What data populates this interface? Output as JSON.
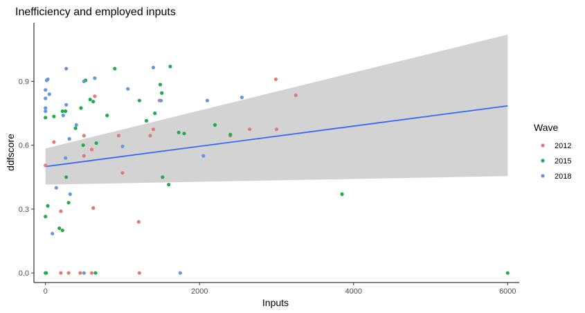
{
  "chart_data": {
    "type": "scatter",
    "title": "Inefficiency and employed inputs",
    "xlabel": "Inputs",
    "ylabel": "ddfscore",
    "xlim": [
      -150,
      6150
    ],
    "ylim": [
      -0.045,
      1.175
    ],
    "xticks": [
      {
        "value": 0,
        "label": "0"
      },
      {
        "value": 2000,
        "label": "2000"
      },
      {
        "value": 4000,
        "label": "4000"
      },
      {
        "value": 6000,
        "label": "6000"
      }
    ],
    "yticks": [
      {
        "value": 0,
        "label": "0.0"
      },
      {
        "value": 0.3,
        "label": "0.3"
      },
      {
        "value": 0.6,
        "label": "0.6"
      },
      {
        "value": 0.9,
        "label": "0.9"
      }
    ],
    "grid": false,
    "legend": {
      "title": "Wave",
      "position": "right"
    },
    "smooth": {
      "method": "linear",
      "color": "#3366FF",
      "band_color": "#D3D3D3",
      "x": [
        0,
        6000
      ],
      "y": [
        0.5,
        0.785
      ],
      "band_lower": [
        0.415,
        0.455
      ],
      "band_upper": [
        0.585,
        1.12
      ]
    },
    "series": [
      {
        "name": "2012",
        "color": "#E07B73",
        "points": [
          [
            200,
            0.0
          ],
          [
            300,
            0.0
          ],
          [
            450,
            0.0
          ],
          [
            600,
            0.0
          ],
          [
            1220,
            0.0
          ],
          [
            0,
            0.505
          ],
          [
            110,
            0.615
          ],
          [
            200,
            0.29
          ],
          [
            500,
            0.645
          ],
          [
            500,
            0.55
          ],
          [
            600,
            0.58
          ],
          [
            620,
            0.305
          ],
          [
            640,
            0.83
          ],
          [
            950,
            0.645
          ],
          [
            1000,
            0.47
          ],
          [
            1210,
            0.24
          ],
          [
            1360,
            0.645
          ],
          [
            1400,
            0.675
          ],
          [
            1480,
            0.81
          ],
          [
            2400,
            0.645
          ],
          [
            2650,
            0.675
          ],
          [
            3000,
            0.675
          ],
          [
            2990,
            0.91
          ],
          [
            3250,
            0.835
          ]
        ]
      },
      {
        "name": "2015",
        "color": "#21AB4E",
        "points": [
          [
            0,
            0.0
          ],
          [
            10,
            0.0
          ],
          [
            650,
            0.0
          ],
          [
            6000,
            0.0
          ],
          [
            0,
            0.265
          ],
          [
            30,
            0.315
          ],
          [
            180,
            0.21
          ],
          [
            220,
            0.2
          ],
          [
            270,
            0.45
          ],
          [
            300,
            0.33
          ],
          [
            0,
            0.73
          ],
          [
            110,
            0.735
          ],
          [
            220,
            0.76
          ],
          [
            260,
            0.76
          ],
          [
            390,
            0.68
          ],
          [
            460,
            0.775
          ],
          [
            490,
            0.6
          ],
          [
            520,
            0.905
          ],
          [
            580,
            0.815
          ],
          [
            620,
            0.805
          ],
          [
            660,
            0.61
          ],
          [
            800,
            0.74
          ],
          [
            900,
            0.96
          ],
          [
            1220,
            0.81
          ],
          [
            1310,
            0.715
          ],
          [
            1420,
            0.75
          ],
          [
            1490,
            0.885
          ],
          [
            1510,
            0.845
          ],
          [
            1520,
            0.45
          ],
          [
            1600,
            0.415
          ],
          [
            1620,
            0.97
          ],
          [
            1730,
            0.66
          ],
          [
            1800,
            0.655
          ],
          [
            2200,
            0.695
          ],
          [
            2400,
            0.65
          ],
          [
            3850,
            0.37
          ]
        ]
      },
      {
        "name": "2018",
        "color": "#6399DB",
        "points": [
          [
            500,
            0.0
          ],
          [
            1750,
            0.0
          ],
          [
            0,
            0.76
          ],
          [
            0,
            0.775
          ],
          [
            0,
            0.82
          ],
          [
            0,
            0.86
          ],
          [
            15,
            0.905
          ],
          [
            30,
            0.91
          ],
          [
            50,
            0.84
          ],
          [
            90,
            0.185
          ],
          [
            140,
            0.4
          ],
          [
            230,
            0.74
          ],
          [
            260,
            0.54
          ],
          [
            270,
            0.79
          ],
          [
            270,
            0.96
          ],
          [
            310,
            0.63
          ],
          [
            320,
            0.37
          ],
          [
            400,
            0.695
          ],
          [
            500,
            0.9
          ],
          [
            640,
            0.915
          ],
          [
            1000,
            0.595
          ],
          [
            1070,
            0.865
          ],
          [
            1400,
            0.965
          ],
          [
            1500,
            0.81
          ],
          [
            2050,
            0.55
          ],
          [
            2100,
            0.81
          ],
          [
            2550,
            0.825
          ]
        ]
      }
    ]
  }
}
